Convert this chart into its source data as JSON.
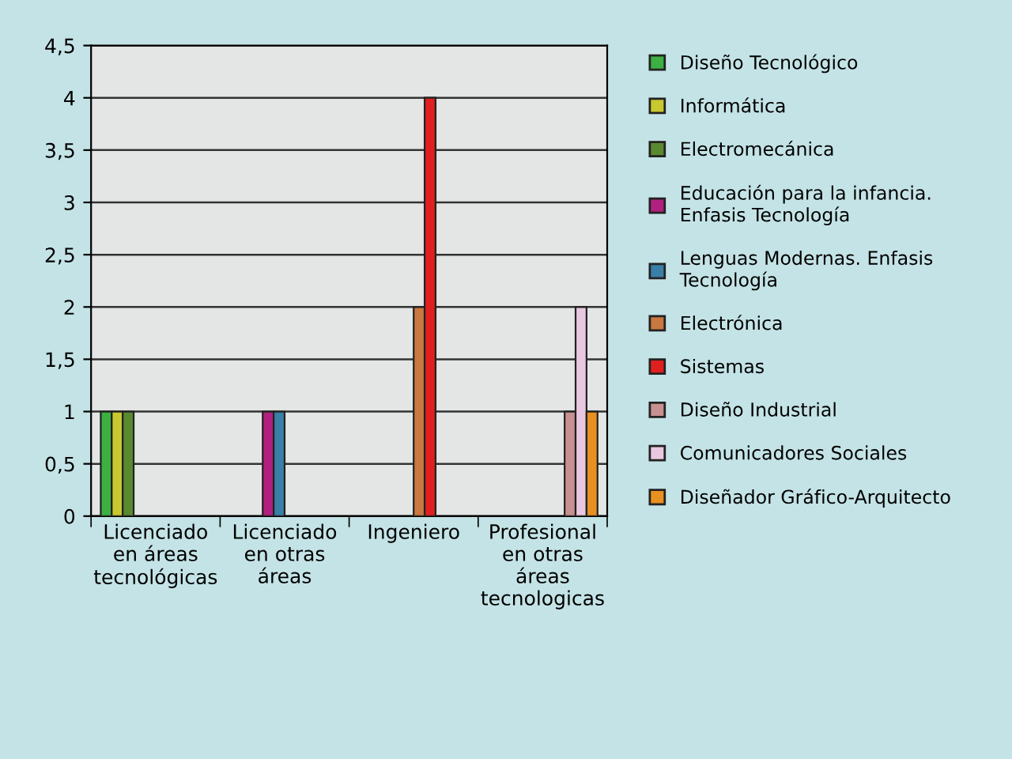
{
  "chart_data": {
    "type": "bar",
    "categories": [
      "Licenciado\nen áreas\ntecnológicas",
      "Licenciado\nen otras\náreas",
      "Ingeniero",
      "Profesional\nen otras\náreas\ntecnologicas"
    ],
    "series": [
      {
        "name": "Diseño Tecnológico",
        "color": "#3cb043",
        "values": [
          1,
          null,
          null,
          null
        ]
      },
      {
        "name": "Informática",
        "color": "#c8c830",
        "values": [
          1,
          null,
          null,
          null
        ]
      },
      {
        "name": "Electromecánica",
        "color": "#5a8a30",
        "values": [
          1,
          null,
          null,
          null
        ]
      },
      {
        "name": "Educación para la infancia.\nEnfasis Tecnología",
        "color": "#b0207f",
        "values": [
          null,
          1,
          null,
          null
        ]
      },
      {
        "name": "Lenguas Modernas. Enfasis\nTecnología",
        "color": "#3a7fa8",
        "values": [
          null,
          1,
          null,
          null
        ]
      },
      {
        "name": "Electrónica",
        "color": "#c87840",
        "values": [
          null,
          null,
          2,
          null
        ]
      },
      {
        "name": "Sistemas",
        "color": "#e02020",
        "values": [
          null,
          null,
          4,
          null
        ]
      },
      {
        "name": "Diseño Industrial",
        "color": "#c89090",
        "values": [
          null,
          null,
          null,
          1
        ]
      },
      {
        "name": "Comunicadores Sociales",
        "color": "#e8c8e0",
        "values": [
          null,
          null,
          null,
          2
        ]
      },
      {
        "name": "Diseñador Gráfico-Arquitecto",
        "color": "#e89020",
        "values": [
          null,
          null,
          null,
          1
        ]
      }
    ],
    "ylim": [
      0,
      4.5
    ],
    "yticks": [
      0,
      {
        "value": 0.5,
        "label": "0,5"
      },
      1,
      {
        "value": 1.5,
        "label": "1,5"
      },
      2,
      {
        "value": 2.5,
        "label": "2,5"
      },
      3,
      {
        "value": 3.5,
        "label": "3,5"
      },
      4,
      {
        "value": 4.5,
        "label": "4,5"
      }
    ],
    "grid": "y",
    "legend": "right"
  }
}
